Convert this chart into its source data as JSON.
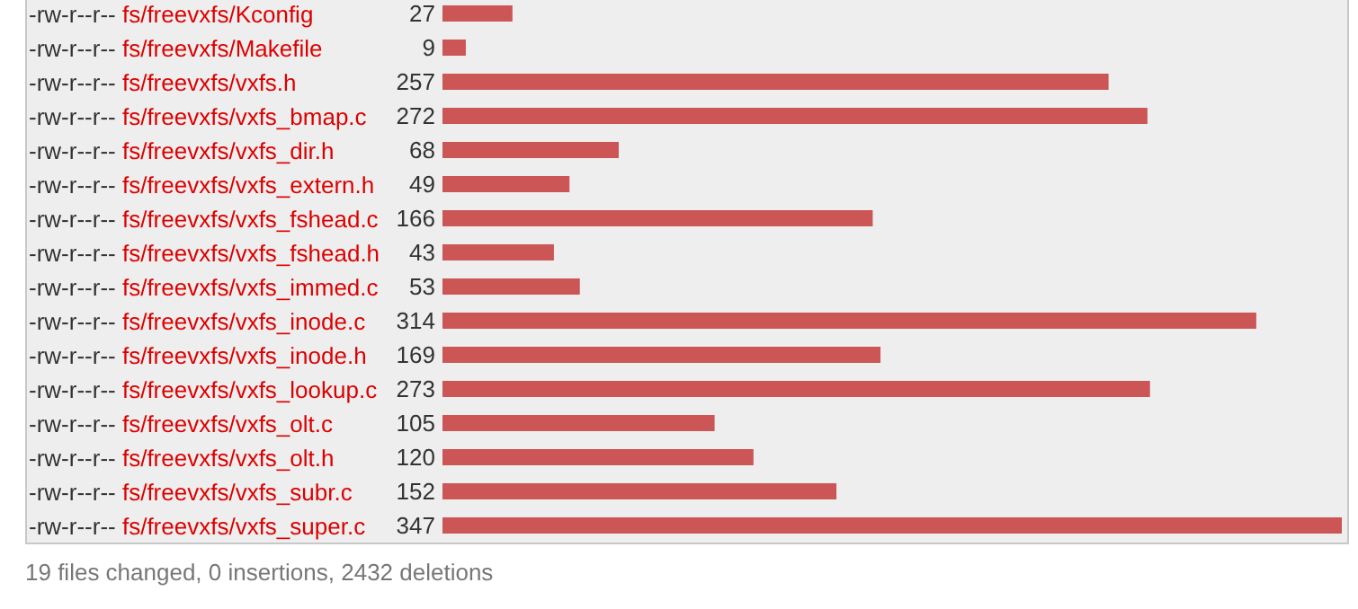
{
  "chart_data": {
    "type": "bar",
    "orientation": "horizontal",
    "categories": [
      "-rw-r--r-- fs/freevxfs/Kconfig",
      "-rw-r--r-- fs/freevxfs/Makefile",
      "-rw-r--r-- fs/freevxfs/vxfs.h",
      "-rw-r--r-- fs/freevxfs/vxfs_bmap.c",
      "-rw-r--r-- fs/freevxfs/vxfs_dir.h",
      "-rw-r--r-- fs/freevxfs/vxfs_extern.h",
      "-rw-r--r-- fs/freevxfs/vxfs_fshead.c",
      "-rw-r--r-- fs/freevxfs/vxfs_fshead.h",
      "-rw-r--r-- fs/freevxfs/vxfs_immed.c",
      "-rw-r--r-- fs/freevxfs/vxfs_inode.c",
      "-rw-r--r-- fs/freevxfs/vxfs_inode.h",
      "-rw-r--r-- fs/freevxfs/vxfs_lookup.c",
      "-rw-r--r-- fs/freevxfs/vxfs_olt.c",
      "-rw-r--r-- fs/freevxfs/vxfs_olt.h",
      "-rw-r--r-- fs/freevxfs/vxfs_subr.c",
      "-rw-r--r-- fs/freevxfs/vxfs_super.c"
    ],
    "values": [
      27,
      9,
      257,
      272,
      68,
      49,
      166,
      43,
      53,
      314,
      169,
      273,
      105,
      120,
      152,
      347
    ],
    "color": "#cc5555",
    "data_labels": true,
    "annotations": [
      "19 files changed, 0 insertions, 2432 deletions"
    ]
  }
}
